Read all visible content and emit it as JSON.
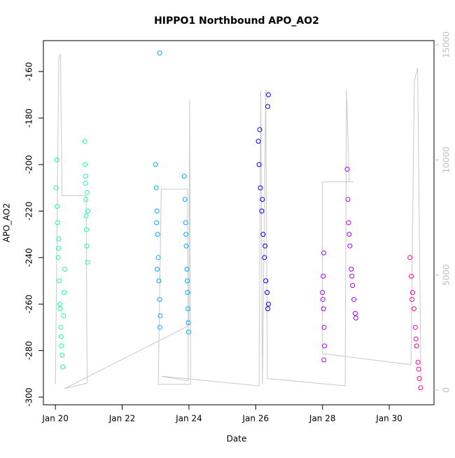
{
  "chart_data": {
    "type": "scatter",
    "title": "HIPPO1 Northbound APO_AO2",
    "x_label": "Date",
    "y_label": "APO_AO2",
    "xlim": [
      19.64,
      31.34
    ],
    "ylim": [
      -303.3,
      -146.7
    ],
    "y2lim": [
      -640,
      15180
    ],
    "xticks": [
      {
        "value": 20,
        "label": "Jan 20"
      },
      {
        "value": 22,
        "label": "Jan 22"
      },
      {
        "value": 24,
        "label": "Jan 24"
      },
      {
        "value": 26,
        "label": "Jan 26"
      },
      {
        "value": 28,
        "label": "Jan 28"
      },
      {
        "value": 30,
        "label": "Jan 30"
      }
    ],
    "yticks": [
      -300,
      -280,
      -260,
      -240,
      -220,
      -200,
      -180,
      -160
    ],
    "y2ticks": [
      0,
      5000,
      10000,
      15000
    ],
    "y2_color": "#bebebe",
    "series": [
      {
        "type": "line",
        "axis": "y2",
        "color": "#c8c8c8",
        "x": [
          20.0,
          20.1,
          20.15,
          20.2,
          20.92,
          20.95,
          20.27,
          24.0,
          24.02,
          24.05,
          23.08,
          23.17,
          23.96,
          23.98,
          23.17,
          26.1,
          26.15,
          26.2,
          26.3,
          26.35,
          28.68,
          28.72,
          28.8,
          28.93,
          28.0,
          28.0,
          30.65,
          30.75,
          30.85,
          30.95
        ],
        "values": [
          250,
          14400,
          14600,
          8450,
          8450,
          300,
          60,
          2800,
          12600,
          250,
          250,
          8730,
          8730,
          400,
          600,
          180,
          13000,
          250,
          13050,
          500,
          180,
          13050,
          9040,
          9040,
          9040,
          1580,
          1100,
          13400,
          14000,
          300
        ]
      },
      {
        "type": "scatter",
        "color": "#1affa3",
        "x": [
          20.02,
          20.04,
          20.06,
          20.08,
          20.1,
          20.12,
          20.14,
          20.16,
          20.18,
          20.2,
          20.22,
          20.24,
          20.26,
          20.28,
          20.05,
          20.09,
          20.13,
          20.17
        ],
        "values": [
          -210,
          -198,
          -225,
          -240,
          -232,
          -250,
          -262,
          -270,
          -278,
          -282,
          -287,
          -265,
          -255,
          -245,
          -218,
          -236,
          -260,
          -274
        ]
      },
      {
        "type": "scatter",
        "color": "#1affa3",
        "x": [
          20.88,
          20.89,
          20.9,
          20.91,
          20.92,
          20.93,
          20.94,
          20.96,
          20.9,
          20.95,
          20.97
        ],
        "values": [
          -190,
          -200,
          -208,
          -215,
          -222,
          -228,
          -235,
          -242,
          -205,
          -212,
          -220
        ]
      },
      {
        "type": "scatter",
        "color": "#00aaff",
        "x": [
          23.0,
          23.02,
          23.04,
          23.06,
          23.08,
          23.1,
          23.12,
          23.14,
          23.13,
          23.12,
          23.05,
          23.03
        ],
        "values": [
          -200,
          -210,
          -220,
          -230,
          -240,
          -250,
          -258,
          -265,
          -270,
          -152,
          -245,
          -225
        ]
      },
      {
        "type": "scatter",
        "color": "#00aaff",
        "x": [
          23.86,
          23.88,
          23.9,
          23.92,
          23.94,
          23.96,
          23.97,
          23.98,
          23.99,
          23.91,
          23.95
        ],
        "values": [
          -205,
          -215,
          -225,
          -235,
          -245,
          -255,
          -262,
          -268,
          -272,
          -230,
          -250
        ]
      },
      {
        "type": "scatter",
        "color": "#0000ff",
        "x": [
          26.38,
          26.36,
          26.08,
          26.1,
          26.14,
          26.18,
          26.22,
          26.26,
          26.3,
          26.34,
          26.38,
          26.36,
          26.12,
          26.2,
          26.28
        ],
        "values": [
          -170,
          -175,
          -190,
          -200,
          -210,
          -220,
          -230,
          -240,
          -250,
          -255,
          -260,
          -262,
          -185,
          -215,
          -235
        ]
      },
      {
        "type": "scatter",
        "color": "#aa00ff",
        "x": [
          28.04,
          28.02,
          28.0,
          28.03,
          28.05,
          28.06,
          28.04,
          28.01
        ],
        "values": [
          -238,
          -248,
          -255,
          -262,
          -270,
          -278,
          -284,
          -258
        ]
      },
      {
        "type": "scatter",
        "color": "#aa00ff",
        "x": [
          28.74,
          28.76,
          28.78,
          28.82,
          28.86,
          28.9,
          28.94,
          28.98,
          29.0,
          28.8,
          28.88
        ],
        "values": [
          -202,
          -215,
          -225,
          -235,
          -245,
          -252,
          -258,
          -264,
          -266,
          -230,
          -248
        ]
      },
      {
        "type": "scatter",
        "color": "#ff00aa",
        "x": [
          30.62,
          30.66,
          30.7,
          30.74,
          30.78,
          30.82,
          30.86,
          30.9,
          30.94,
          30.68,
          30.8,
          30.88
        ],
        "values": [
          -240,
          -248,
          -255,
          -262,
          -270,
          -278,
          -285,
          -292,
          -296,
          -258,
          -275,
          -288
        ]
      }
    ]
  }
}
